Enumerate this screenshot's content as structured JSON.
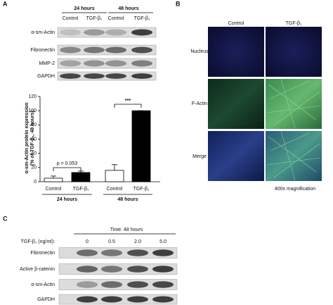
{
  "panel_a": {
    "label": "A",
    "blot": {
      "groups": [
        "24 hours",
        "48 hours"
      ],
      "lanes": [
        "Control",
        "TGF-β₁",
        "Control",
        "TGF-β₁"
      ],
      "rows": [
        "α-sm-Actin",
        "Fibronectin",
        "MMP-2",
        "GAPDH"
      ]
    }
  },
  "chart_data": {
    "type": "bar",
    "y_label": [
      "α-sm-Actin protein expression",
      "(% of TGF-β₁, 48 hours)"
    ],
    "categories": [
      "Control",
      "TGF-β₁",
      "Control",
      "TGF-β₁"
    ],
    "groups": [
      "24 hours",
      "48 hours"
    ],
    "values": [
      5,
      13,
      16,
      100
    ],
    "errors": [
      3,
      2,
      8,
      0
    ],
    "colors": [
      "#ffffff",
      "#000000",
      "#ffffff",
      "#000000"
    ],
    "ylim": [
      0,
      120
    ],
    "yticks": [
      0,
      20,
      40,
      60,
      80,
      100,
      120
    ],
    "annotations": [
      "p = 0.053",
      "***"
    ]
  },
  "panel_b": {
    "label": "B",
    "columns": [
      "Control",
      "TGF-β₁"
    ],
    "rows": [
      "Nucleus",
      "F-Actin",
      "Merge"
    ],
    "caption": "400x magnification"
  },
  "panel_c": {
    "label": "C",
    "time": "Time: 48 hours",
    "dose_label": "TGF-β₁ (ng/ml):",
    "doses": [
      "0",
      "0.5",
      "2.0",
      "5.0"
    ],
    "rows": [
      "Fibronectin",
      "Active β-catenin",
      "α-sm-Actin",
      "GAPDH"
    ]
  }
}
